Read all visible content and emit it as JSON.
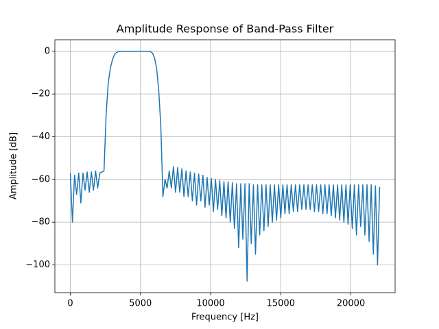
{
  "chart_data": {
    "type": "line",
    "title": "Amplitude Response of Band-Pass Filter",
    "x_label": "Frequency [Hz]",
    "y_label": "Amplitude [dB]",
    "x": [
      0,
      150,
      300,
      450,
      600,
      750,
      900,
      1050,
      1200,
      1350,
      1500,
      1650,
      1800,
      1950,
      2100,
      2250,
      2400,
      2550,
      2700,
      2850,
      3000,
      3150,
      3300,
      3450,
      3600,
      3750,
      3900,
      4050,
      4200,
      4350,
      4500,
      4650,
      4800,
      4950,
      5100,
      5250,
      5400,
      5550,
      5700,
      5850,
      6000,
      6150,
      6300,
      6450,
      6600,
      6750,
      6900,
      7050,
      7200,
      7350,
      7500,
      7650,
      7800,
      7950,
      8100,
      8250,
      8400,
      8550,
      8700,
      8850,
      9000,
      9150,
      9300,
      9450,
      9600,
      9750,
      9900,
      10050,
      10200,
      10350,
      10500,
      10650,
      10800,
      10950,
      11100,
      11250,
      11400,
      11550,
      11700,
      11850,
      12000,
      12150,
      12300,
      12450,
      12600,
      12750,
      12900,
      13050,
      13200,
      13350,
      13500,
      13650,
      13800,
      13950,
      14100,
      14250,
      14400,
      14550,
      14700,
      14850,
      15000,
      15150,
      15300,
      15450,
      15600,
      15750,
      15900,
      16050,
      16200,
      16350,
      16500,
      16650,
      16800,
      16950,
      17100,
      17250,
      17400,
      17550,
      17700,
      17850,
      18000,
      18150,
      18300,
      18450,
      18600,
      18750,
      18900,
      19050,
      19200,
      19350,
      19500,
      19650,
      19800,
      19950,
      20100,
      20250,
      20400,
      20550,
      20700,
      20850,
      21000,
      21150,
      21300,
      21450,
      21600,
      21750,
      21900,
      22050
    ],
    "series": [
      {
        "name": "Amplitude",
        "color": "#1f77b4",
        "values": [
          -57,
          -80,
          -58,
          -67,
          -57,
          -71,
          -57,
          -65,
          -56.5,
          -66,
          -56.5,
          -65,
          -56,
          -64,
          -57,
          -56.5,
          -56,
          -30,
          -15,
          -8,
          -4,
          -1.5,
          -0.5,
          -0.1,
          0,
          0,
          0,
          0,
          0,
          0,
          0,
          0,
          0,
          0,
          0,
          0,
          0,
          0,
          -0.1,
          -0.8,
          -3,
          -8,
          -18,
          -35,
          -68,
          -60,
          -64,
          -56,
          -64,
          -54,
          -66,
          -54.5,
          -66,
          -55,
          -68,
          -56,
          -68,
          -56.5,
          -70,
          -57,
          -72,
          -57.5,
          -70,
          -58,
          -73,
          -59,
          -72,
          -59.5,
          -75,
          -60,
          -74,
          -60.5,
          -77,
          -61,
          -78,
          -61,
          -80,
          -61.5,
          -83,
          -62,
          -92,
          -62,
          -88,
          -62,
          -107.6,
          -62,
          -90,
          -62.5,
          -95,
          -62.5,
          -86,
          -62.5,
          -84,
          -62.5,
          -82,
          -62.5,
          -80,
          -62.5,
          -79,
          -62.5,
          -78,
          -62.5,
          -76,
          -62.5,
          -76,
          -62.5,
          -75,
          -62.5,
          -75,
          -62.5,
          -74,
          -62.5,
          -74,
          -62.5,
          -74,
          -62.5,
          -75,
          -62.5,
          -75,
          -62.5,
          -76,
          -62.5,
          -76,
          -62.5,
          -77,
          -62.5,
          -78,
          -62.5,
          -79,
          -62.5,
          -80,
          -62.5,
          -81,
          -62.5,
          -83,
          -62.5,
          -86,
          -62.5,
          -82,
          -62.5,
          -86,
          -62.5,
          -89,
          -62.5,
          -95,
          -63,
          -100,
          -63.5
        ]
      }
    ],
    "xlim": [
      -1102,
      23152
    ],
    "ylim": [
      -113,
      5.4
    ],
    "xticks": [
      0,
      5000,
      10000,
      15000,
      20000
    ],
    "yticks": [
      0,
      {
        "value": -20,
        "label": "−20"
      },
      {
        "value": -40,
        "label": "−40"
      },
      {
        "value": -60,
        "label": "−60"
      },
      {
        "value": -80,
        "label": "−80"
      },
      {
        "value": -100,
        "label": "−100"
      }
    ],
    "grid": true
  }
}
